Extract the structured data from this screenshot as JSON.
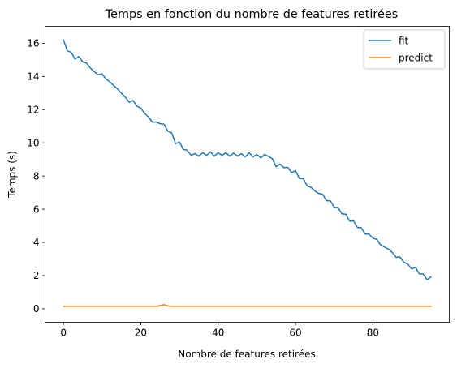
{
  "chart_data": {
    "type": "line",
    "title": "Temps en fonction du nombre de features retirées",
    "xlabel": "Nombre de features retirées",
    "ylabel": "Temps (s)",
    "xlim": [
      -4.75,
      99.75
    ],
    "ylim": [
      -0.81,
      17.02
    ],
    "xticks": [
      0,
      20,
      40,
      60,
      80
    ],
    "xtick_labels": [
      "0",
      "20",
      "40",
      "60",
      "80"
    ],
    "yticks": [
      0,
      2,
      4,
      6,
      8,
      10,
      12,
      14,
      16
    ],
    "ytick_labels": [
      "0",
      "2",
      "4",
      "6",
      "8",
      "10",
      "12",
      "14",
      "16"
    ],
    "grid": false,
    "legend_position": "top-right",
    "x": [
      0,
      1,
      2,
      3,
      4,
      5,
      6,
      7,
      8,
      9,
      10,
      11,
      12,
      13,
      14,
      15,
      16,
      17,
      18,
      19,
      20,
      21,
      22,
      23,
      24,
      25,
      26,
      27,
      28,
      29,
      30,
      31,
      32,
      33,
      34,
      35,
      36,
      37,
      38,
      39,
      40,
      41,
      42,
      43,
      44,
      45,
      46,
      47,
      48,
      49,
      50,
      51,
      52,
      53,
      54,
      55,
      56,
      57,
      58,
      59,
      60,
      61,
      62,
      63,
      64,
      65,
      66,
      67,
      68,
      69,
      70,
      71,
      72,
      73,
      74,
      75,
      76,
      77,
      78,
      79,
      80,
      81,
      82,
      83,
      84,
      85,
      86,
      87,
      88,
      89,
      90,
      91,
      92,
      93,
      94,
      95
    ],
    "series": [
      {
        "name": "fit",
        "color": "#1f77b4",
        "values": [
          16.2,
          15.55,
          15.45,
          15.05,
          15.2,
          14.88,
          14.8,
          14.5,
          14.28,
          14.1,
          14.15,
          13.85,
          13.68,
          13.45,
          13.25,
          12.98,
          12.75,
          12.45,
          12.55,
          12.2,
          12.1,
          11.78,
          11.55,
          11.25,
          11.25,
          11.15,
          11.12,
          10.7,
          10.6,
          9.95,
          10.05,
          9.6,
          9.55,
          9.25,
          9.35,
          9.2,
          9.4,
          9.25,
          9.45,
          9.2,
          9.4,
          9.25,
          9.4,
          9.2,
          9.38,
          9.2,
          9.35,
          9.15,
          9.4,
          9.15,
          9.3,
          9.1,
          9.3,
          9.18,
          9.05,
          8.55,
          8.72,
          8.5,
          8.52,
          8.2,
          8.32,
          7.85,
          7.85,
          7.4,
          7.32,
          7.1,
          6.95,
          6.9,
          6.52,
          6.5,
          6.12,
          6.1,
          5.72,
          5.7,
          5.28,
          5.3,
          4.9,
          4.88,
          4.5,
          4.5,
          4.25,
          4.18,
          3.85,
          3.72,
          3.6,
          3.4,
          3.1,
          3.12,
          2.8,
          2.7,
          2.4,
          2.5,
          2.1,
          2.1,
          1.75,
          1.92
        ]
      },
      {
        "name": "predict",
        "color": "#ff7f0e",
        "values": [
          0.15,
          0.15,
          0.15,
          0.15,
          0.15,
          0.15,
          0.15,
          0.15,
          0.15,
          0.15,
          0.15,
          0.15,
          0.15,
          0.15,
          0.15,
          0.15,
          0.15,
          0.15,
          0.15,
          0.15,
          0.15,
          0.15,
          0.15,
          0.15,
          0.15,
          0.19,
          0.25,
          0.17,
          0.15,
          0.15,
          0.15,
          0.15,
          0.15,
          0.15,
          0.15,
          0.15,
          0.15,
          0.15,
          0.15,
          0.15,
          0.15,
          0.15,
          0.15,
          0.15,
          0.15,
          0.15,
          0.15,
          0.15,
          0.15,
          0.15,
          0.15,
          0.15,
          0.15,
          0.15,
          0.15,
          0.15,
          0.15,
          0.15,
          0.15,
          0.15,
          0.15,
          0.15,
          0.15,
          0.15,
          0.15,
          0.15,
          0.15,
          0.15,
          0.15,
          0.15,
          0.15,
          0.15,
          0.15,
          0.15,
          0.15,
          0.15,
          0.15,
          0.15,
          0.15,
          0.15,
          0.15,
          0.15,
          0.15,
          0.15,
          0.15,
          0.15,
          0.15,
          0.15,
          0.15,
          0.15,
          0.15,
          0.15,
          0.15,
          0.15,
          0.15,
          0.15
        ]
      }
    ]
  }
}
